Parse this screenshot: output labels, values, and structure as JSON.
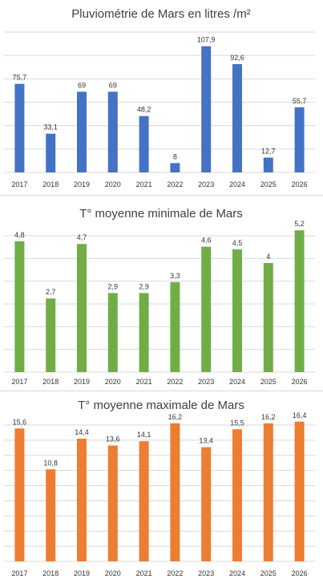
{
  "chart_data": [
    {
      "type": "bar",
      "title": "Pluviométrie de Mars en litres /m²",
      "color": "#4472C4",
      "categories": [
        "2017",
        "2018",
        "2019",
        "2020",
        "2021",
        "2022",
        "2023",
        "2024",
        "2025",
        "2026"
      ],
      "values": [
        75.7,
        33.1,
        69,
        69,
        48.2,
        8,
        107.9,
        92.6,
        12.7,
        55.7
      ],
      "labels": [
        "75,7",
        "33,1",
        "69",
        "69",
        "48,2",
        "8",
        "107,9",
        "92,6",
        "12,7",
        "55,7"
      ],
      "ylim": [
        0,
        120
      ],
      "grid": true
    },
    {
      "type": "bar",
      "title": "T° moyenne minimale de Mars",
      "color": "#70AD47",
      "categories": [
        "2017",
        "2018",
        "2019",
        "2020",
        "2021",
        "2022",
        "2023",
        "2024",
        "2025",
        "2026"
      ],
      "values": [
        4.8,
        2.7,
        4.7,
        2.9,
        2.9,
        3.3,
        4.6,
        4.5,
        4,
        5.2
      ],
      "labels": [
        "4,8",
        "2,7",
        "4,7",
        "2,9",
        "2,9",
        "3,3",
        "4,6",
        "4,5",
        "4",
        "5,2"
      ],
      "ylim": [
        0,
        5
      ],
      "grid": true
    },
    {
      "type": "bar",
      "title": "T° moyenne maximale de Mars",
      "color": "#ED7D31",
      "categories": [
        "2017",
        "2018",
        "2019",
        "2020",
        "2021",
        "2022",
        "2023",
        "2024",
        "2025",
        "2026"
      ],
      "values": [
        15.6,
        10.8,
        14.4,
        13.6,
        14.1,
        16.2,
        13.4,
        15.5,
        16.2,
        16.4
      ],
      "labels": [
        "15,6",
        "10,8",
        "14,4",
        "13,6",
        "14,1",
        "16,2",
        "13,4",
        "15,5",
        "16,2",
        "16,4"
      ],
      "ylim": [
        0,
        16
      ],
      "grid": true
    }
  ]
}
